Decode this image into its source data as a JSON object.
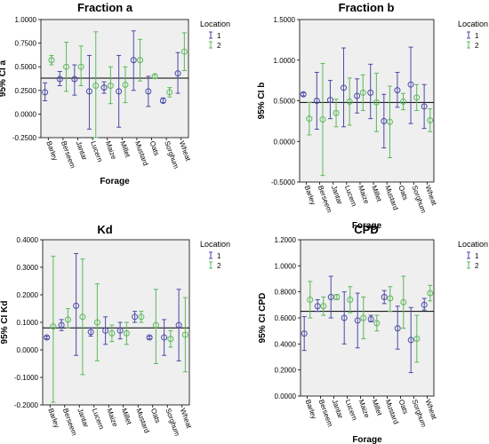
{
  "colors": {
    "loc1": "#4a4aa8",
    "loc2": "#5cb85c",
    "plot_bg": "#efefef",
    "ref_line": "#000000"
  },
  "legend": {
    "title": "Location",
    "labels": [
      "1",
      "2"
    ]
  },
  "chart_data": [
    {
      "type": "errorbar",
      "title": "Fraction a",
      "xlabel": "Forage",
      "ylabel": "95% CI a",
      "ylim": [
        -0.25,
        1.0
      ],
      "yticks": [
        "1.0000",
        "0.7500",
        "0.5000",
        "0.2500",
        "0.0000",
        "-0.2500"
      ],
      "ref_line": 0.38,
      "categories": [
        "Barley",
        "Berseem",
        "Jantar",
        "Lucern",
        "Maize",
        "Millet",
        "Mustard",
        "Oats",
        "Sorghum",
        "Wheat"
      ],
      "series": [
        {
          "name": "1",
          "mean": [
            0.23,
            0.37,
            0.37,
            0.24,
            0.28,
            0.24,
            0.57,
            0.24,
            0.14,
            0.43
          ],
          "low": [
            0.14,
            0.3,
            0.2,
            -0.16,
            0.22,
            -0.14,
            0.25,
            0.08,
            0.12,
            0.22
          ],
          "high": [
            0.33,
            0.45,
            0.52,
            0.62,
            0.34,
            0.62,
            0.88,
            0.4,
            0.17,
            0.65
          ]
        },
        {
          "name": "2",
          "mean": [
            0.57,
            0.5,
            0.5,
            0.3,
            0.3,
            0.31,
            0.57,
            0.4,
            0.23,
            0.66
          ],
          "low": [
            0.52,
            0.24,
            0.3,
            -0.27,
            0.11,
            0.12,
            0.35,
            0.38,
            0.18,
            0.46
          ],
          "high": [
            0.62,
            0.76,
            0.72,
            0.87,
            0.5,
            0.5,
            0.79,
            0.42,
            0.28,
            0.86
          ]
        }
      ]
    },
    {
      "type": "errorbar",
      "title": "Fraction b",
      "xlabel": "Forage",
      "ylabel": "95% CI b",
      "ylim": [
        -0.5,
        1.5
      ],
      "yticks": [
        "1.5000",
        "1.0000",
        "0.5000",
        "0.0000",
        "-0.5000"
      ],
      "ref_line": 0.48,
      "categories": [
        "Barley",
        "Berseem",
        "Jantar",
        "Lucern",
        "Maize",
        "Millet",
        "Mustard",
        "Oats",
        "Sorghum",
        "Wheat"
      ],
      "series": [
        {
          "name": "1",
          "mean": [
            0.58,
            0.5,
            0.51,
            0.66,
            0.56,
            0.6,
            0.25,
            0.63,
            0.7,
            0.43
          ],
          "low": [
            0.56,
            0.15,
            0.28,
            0.18,
            0.35,
            0.28,
            -0.08,
            0.42,
            0.22,
            0.16
          ],
          "high": [
            0.6,
            0.85,
            0.75,
            1.15,
            0.77,
            0.95,
            0.58,
            0.85,
            1.16,
            0.7
          ]
        },
        {
          "name": "2",
          "mean": [
            0.28,
            0.27,
            0.35,
            0.49,
            0.6,
            0.48,
            0.24,
            0.49,
            0.54,
            0.26
          ],
          "low": [
            0.08,
            -0.42,
            0.18,
            0.2,
            0.38,
            0.12,
            -0.2,
            0.39,
            0.38,
            0.12
          ],
          "high": [
            0.48,
            0.96,
            0.52,
            0.78,
            0.82,
            0.84,
            0.68,
            0.59,
            0.7,
            0.4
          ]
        }
      ]
    },
    {
      "type": "errorbar",
      "title": "Kd",
      "xlabel": "Forage",
      "ylabel": "95% CI Kd",
      "ylim": [
        -0.2,
        0.4
      ],
      "yticks": [
        "0.4000",
        "0.3000",
        "0.2000",
        "0.1000",
        "0.0000",
        "-0.1000",
        "-0.2000"
      ],
      "ref_line": 0.08,
      "categories": [
        "Barley",
        "Berseem",
        "Jantar",
        "Lucern",
        "Maize",
        "Millet",
        "Mustard",
        "Oats",
        "Sorghum",
        "Wheat"
      ],
      "series": [
        {
          "name": "1",
          "mean": [
            0.045,
            0.09,
            0.16,
            0.065,
            0.07,
            0.07,
            0.12,
            0.045,
            0.045,
            0.09
          ],
          "low": [
            0.04,
            0.07,
            -0.02,
            0.05,
            0.02,
            0.04,
            0.1,
            0.04,
            -0.02,
            -0.04
          ],
          "high": [
            0.05,
            0.11,
            0.35,
            0.08,
            0.12,
            0.1,
            0.14,
            0.05,
            0.11,
            0.22
          ]
        },
        {
          "name": "2",
          "mean": [
            0.085,
            0.11,
            0.12,
            0.1,
            0.06,
            0.06,
            0.12,
            0.09,
            0.04,
            0.055
          ],
          "low": [
            -0.19,
            0.08,
            -0.09,
            -0.04,
            0.03,
            0.02,
            0.1,
            -0.05,
            0.01,
            -0.08
          ],
          "high": [
            0.34,
            0.15,
            0.33,
            0.24,
            0.09,
            0.1,
            0.14,
            0.22,
            0.07,
            0.19
          ]
        }
      ]
    },
    {
      "type": "errorbar",
      "title": "CPD",
      "xlabel": "Forage",
      "ylabel": "95% CI CPD",
      "ylim": [
        0.0,
        1.2
      ],
      "yticks": [
        "1.2000",
        "1.0000",
        "0.8000",
        "0.6000",
        "0.4000",
        "0.2000",
        "0.0000"
      ],
      "ref_line": 0.65,
      "categories": [
        "Barley",
        "Berseem",
        "Jantar",
        "Lucern",
        "Maize",
        "Millet",
        "Mustard",
        "Oats",
        "Sorghum",
        "Wheat"
      ],
      "series": [
        {
          "name": "1",
          "mean": [
            0.48,
            0.69,
            0.76,
            0.6,
            0.58,
            0.59,
            0.76,
            0.52,
            0.43,
            0.7
          ],
          "low": [
            0.35,
            0.65,
            0.6,
            0.4,
            0.37,
            0.57,
            0.71,
            0.36,
            0.18,
            0.66
          ],
          "high": [
            0.61,
            0.74,
            0.92,
            0.8,
            0.79,
            0.62,
            0.81,
            0.69,
            0.68,
            0.75
          ]
        },
        {
          "name": "2",
          "mean": [
            0.74,
            0.69,
            0.76,
            0.74,
            0.6,
            0.56,
            0.75,
            0.72,
            0.44,
            0.79
          ],
          "low": [
            0.6,
            0.62,
            0.74,
            0.64,
            0.44,
            0.5,
            0.65,
            0.52,
            0.26,
            0.73
          ],
          "high": [
            0.88,
            0.76,
            0.78,
            0.84,
            0.76,
            0.62,
            0.84,
            0.92,
            0.62,
            0.85
          ]
        }
      ]
    }
  ]
}
